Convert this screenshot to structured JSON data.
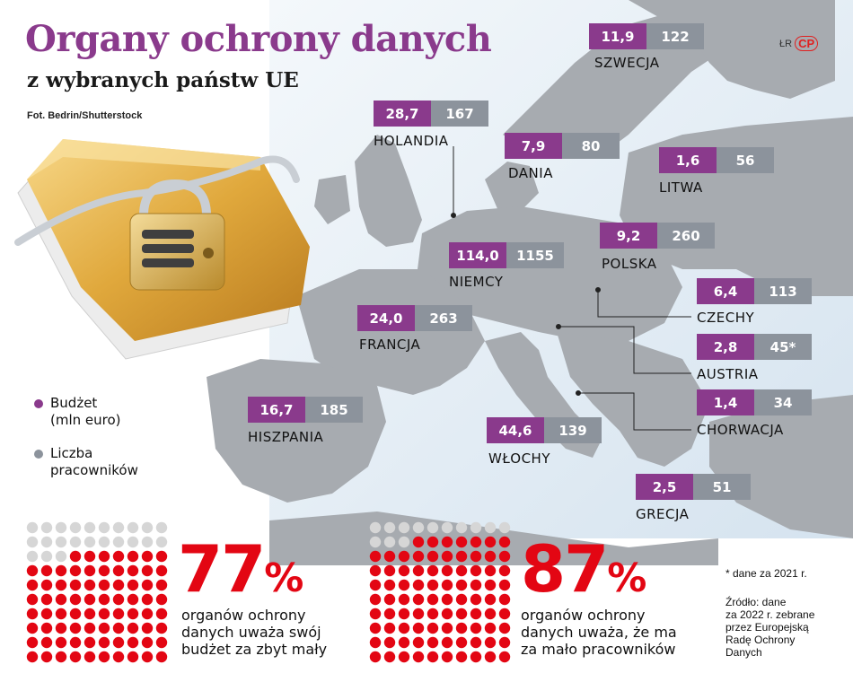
{
  "header": {
    "title": "Organy ochrony danych",
    "subtitle": "z wybranych państw UE",
    "photo_credit": "Fot. Bedrin/Shutterstock",
    "logo_small": "ŁR",
    "logo_mark": "CP"
  },
  "colors": {
    "budget": "#8a3a8c",
    "employees": "#8c939c",
    "accent_red": "#e30613",
    "dot_grey": "#d6d6d6",
    "sea": "#dfe9f2",
    "land": "#a7abb0"
  },
  "legend": {
    "budget_line1": "Budżet",
    "budget_line2": "(mln euro)",
    "employees_line1": "Liczba",
    "employees_line2": "pracowników"
  },
  "countries": [
    {
      "name": "SZWECJA",
      "budget": "11,9",
      "employees": "122"
    },
    {
      "name": "HOLANDIA",
      "budget": "28,7",
      "employees": "167"
    },
    {
      "name": "DANIA",
      "budget": "7,9",
      "employees": "80"
    },
    {
      "name": "LITWA",
      "budget": "1,6",
      "employees": "56"
    },
    {
      "name": "POLSKA",
      "budget": "9,2",
      "employees": "260"
    },
    {
      "name": "NIEMCY",
      "budget": "114,0",
      "employees": "1155"
    },
    {
      "name": "CZECHY",
      "budget": "6,4",
      "employees": "113"
    },
    {
      "name": "FRANCJA",
      "budget": "24,0",
      "employees": "263"
    },
    {
      "name": "AUSTRIA",
      "budget": "2,8",
      "employees": "45*"
    },
    {
      "name": "CHORWACJA",
      "budget": "1,4",
      "employees": "34"
    },
    {
      "name": "HISZPANIA",
      "budget": "16,7",
      "employees": "185"
    },
    {
      "name": "WŁOCHY",
      "budget": "44,6",
      "employees": "139"
    },
    {
      "name": "GRECJA",
      "budget": "2,5",
      "employees": "51"
    }
  ],
  "stats": [
    {
      "value": "77",
      "unit": "%",
      "share": 0.77,
      "line1": "organów ochrony",
      "line2": "danych uważa swój",
      "line3": "budżet za zbyt mały"
    },
    {
      "value": "87",
      "unit": "%",
      "share": 0.87,
      "line1": "organów ochrony",
      "line2": "danych uważa, że ma",
      "line3": "za mało pracowników"
    }
  ],
  "footnote": "* dane za 2021 r.",
  "source": {
    "line1": "Źródło: dane",
    "line2": "za 2022 r. zebrane",
    "line3": "przez Europejską",
    "line4": "Radę Ochrony",
    "line5": "Danych"
  }
}
